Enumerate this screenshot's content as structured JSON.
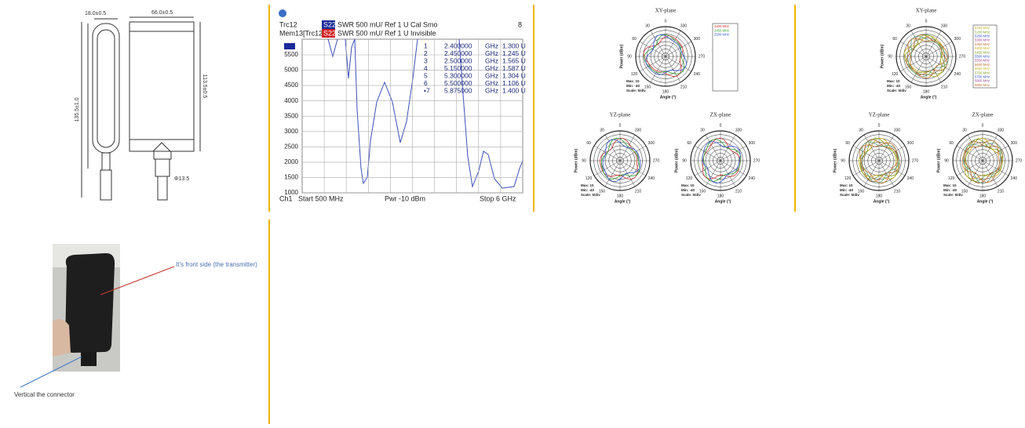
{
  "drawing": {
    "dimensions": [
      "18.0±0.5",
      "66.0±0.5",
      "135.5±1.0",
      "113.5±0.5",
      "Φ13.5"
    ]
  },
  "vna": {
    "trace1": "Trc12",
    "param1": "S22",
    "format1": "SWR 500 mU/ Ref 1 U",
    "status1": "Cal Smo",
    "channels": "8",
    "trace2": "Mem13[Trc12]",
    "param2": "S22",
    "format2": "SWR 500 mU/ Ref 1 U",
    "status2": "Invisible",
    "markers": [
      [
        "1",
        "2.400000",
        "GHz",
        "1.300 U"
      ],
      [
        "2",
        "2.450000",
        "GHz",
        "1.245 U"
      ],
      [
        "3",
        "2.500000",
        "GHz",
        "1.565 U"
      ],
      [
        "4",
        "5.150000",
        "GHz",
        "1.587 U"
      ],
      [
        "5",
        "5.300000",
        "GHz",
        "1.304 U"
      ],
      [
        "6",
        "5.500000",
        "GHz",
        "1.106 U"
      ],
      [
        "•7",
        "5.875000",
        "GHz",
        "1.400 U"
      ]
    ],
    "y_labels": [
      "5500",
      "5000",
      "4500",
      "4000",
      "3500",
      "3000",
      "2500",
      "2000",
      "1500",
      "1000"
    ],
    "footer": [
      "Ch1",
      "Start 500 MHz",
      "Pwr -10 dBm",
      "Stop 6 GHz"
    ]
  },
  "patterns": {
    "planes": [
      "XY-plane",
      "YZ-plane",
      "ZX-plane"
    ],
    "angles": [
      "0",
      "30",
      "60",
      "90",
      "120",
      "150",
      "180",
      "210",
      "240",
      "270",
      "300",
      "330"
    ],
    "angle_axis": "Angle (°)",
    "power_axis": "Power (dBm)",
    "scale_info": [
      "Max: 10",
      "Min: -40",
      "Scale: 5/div"
    ],
    "legend_24": [
      "2400 MHz",
      "2450 MHz",
      "2500 MHz"
    ],
    "legend_5": [
      "5150 MHz",
      "5200 MHz",
      "5250 MHz",
      "5300 MHz",
      "5350 MHz",
      "5400 MHz",
      "5450 MHz",
      "5500 MHz",
      "5550 MHz",
      "5600 MHz",
      "5650 MHz",
      "5700 MHz",
      "5750 MHz",
      "5800 MHz",
      "5850 MHz"
    ]
  },
  "photo": {
    "front_note": "It's front side (the transmitter)",
    "connector_note": "Vertical the connector"
  }
}
